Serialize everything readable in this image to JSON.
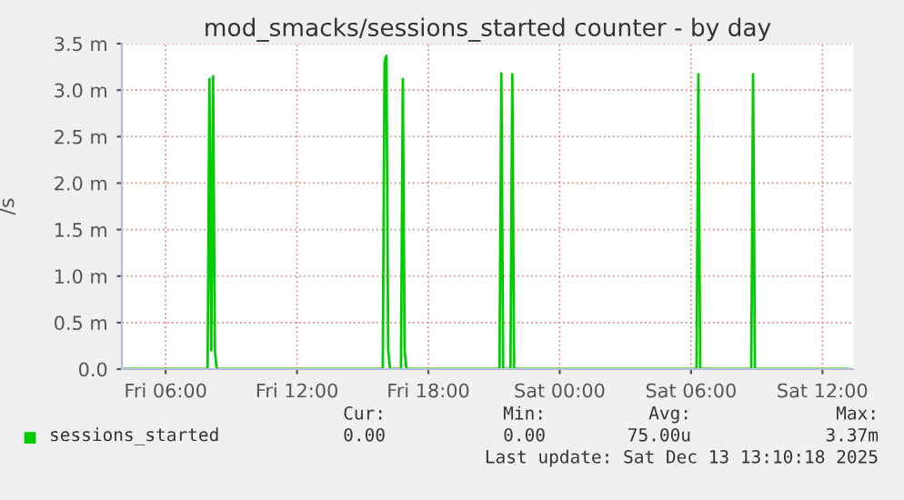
{
  "chart_data": {
    "type": "line",
    "title": "mod_smacks/sessions_started counter - by day",
    "ylabel": "/s",
    "series": [
      {
        "name": "sessions_started",
        "color": "#00cc00",
        "x": [
          "2025-12-12T04:00",
          "2025-12-12T07:55",
          "2025-12-12T08:00",
          "2025-12-12T08:05",
          "2025-12-12T08:10",
          "2025-12-12T08:15",
          "2025-12-12T08:20",
          "2025-12-12T15:55",
          "2025-12-12T16:00",
          "2025-12-12T16:05",
          "2025-12-12T16:10",
          "2025-12-12T16:15",
          "2025-12-12T16:45",
          "2025-12-12T16:50",
          "2025-12-12T16:55",
          "2025-12-12T17:00",
          "2025-12-12T21:15",
          "2025-12-12T21:20",
          "2025-12-12T21:25",
          "2025-12-12T21:45",
          "2025-12-12T21:50",
          "2025-12-12T21:55",
          "2025-12-13T06:15",
          "2025-12-13T06:20",
          "2025-12-13T06:25",
          "2025-12-13T08:45",
          "2025-12-13T08:50",
          "2025-12-13T08:55",
          "2025-12-13T13:12"
        ],
        "values": [
          0,
          0,
          3.12,
          0.2,
          3.15,
          0.2,
          0,
          0,
          3.3,
          3.37,
          0.2,
          0,
          0,
          3.12,
          0.2,
          0,
          0,
          3.18,
          0,
          0,
          3.17,
          0,
          0,
          3.17,
          0,
          0,
          3.17,
          0,
          0
        ]
      }
    ],
    "xlim": [
      "2025-12-12T04:00",
      "2025-12-13T13:24"
    ],
    "xticks": [
      {
        "value": "2025-12-12T06:00",
        "label": "Fri 06:00"
      },
      {
        "value": "2025-12-12T12:00",
        "label": "Fri 12:00"
      },
      {
        "value": "2025-12-12T18:00",
        "label": "Fri 18:00"
      },
      {
        "value": "2025-12-13T00:00",
        "label": "Sat 00:00"
      },
      {
        "value": "2025-12-13T06:00",
        "label": "Sat 06:00"
      },
      {
        "value": "2025-12-13T12:00",
        "label": "Sat 12:00"
      }
    ],
    "ylim": [
      0,
      3.5
    ],
    "yticks": [
      {
        "value": 0,
        "label": "0.0"
      },
      {
        "value": 0.5,
        "label": "0.5 m"
      },
      {
        "value": 1.0,
        "label": "1.0 m"
      },
      {
        "value": 1.5,
        "label": "1.5 m"
      },
      {
        "value": 2.0,
        "label": "2.0 m"
      },
      {
        "value": 2.5,
        "label": "2.5 m"
      },
      {
        "value": 3.0,
        "label": "3.0 m"
      },
      {
        "value": 3.5,
        "label": "3.5 m"
      }
    ],
    "grid": true,
    "legend": "bottom",
    "annotations": [
      "Cur:",
      "Min:",
      "Avg:",
      "Max:",
      "0.00",
      "0.00",
      "75.00u",
      "3.37m",
      "Last update: Sat Dec 13 13:10:18 2025"
    ]
  }
}
